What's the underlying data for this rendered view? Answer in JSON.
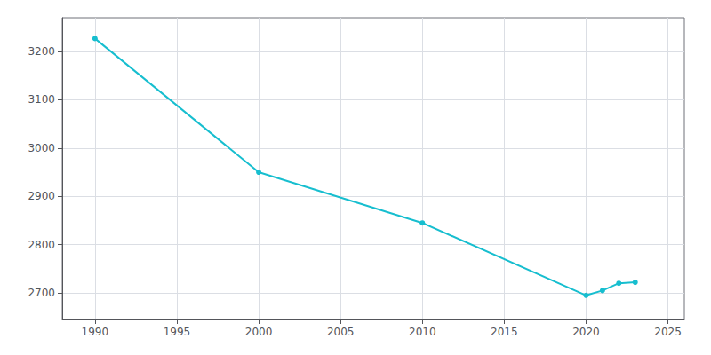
{
  "chart_data": {
    "type": "line",
    "x": [
      1990,
      2000,
      2010,
      2020,
      2021,
      2022,
      2023
    ],
    "values": [
      3227,
      2950,
      2845,
      2695,
      2705,
      2720,
      2722
    ],
    "color": "#17becf",
    "marker": "circle",
    "xlim": [
      1988,
      2026
    ],
    "xticks": [
      1990,
      1995,
      2000,
      2005,
      2010,
      2015,
      2020,
      2025
    ],
    "ylim": [
      2645,
      3270
    ],
    "yticks": [
      2700,
      2800,
      2900,
      3000,
      3100,
      3200
    ],
    "grid": true
  }
}
